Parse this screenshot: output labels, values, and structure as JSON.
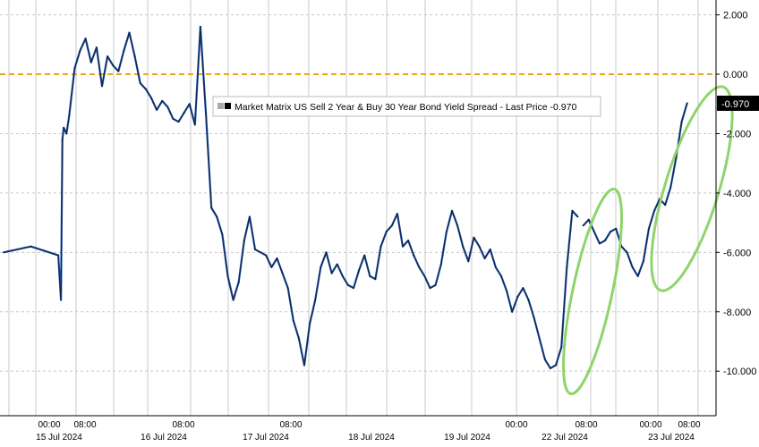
{
  "chart_data": {
    "type": "line",
    "title": "",
    "xlabel": "",
    "ylabel": "",
    "ylim": [
      -11.5,
      2.5
    ],
    "y_ticks": [
      "2.000",
      "0.000",
      "-2.000",
      "-4.000",
      "-6.000",
      "-8.000",
      "-10.000"
    ],
    "y_tick_values": [
      2,
      0,
      -2,
      -4,
      -6,
      -8,
      -10
    ],
    "y_axis_side": "right",
    "grid": true,
    "reference_line": {
      "value": 0,
      "color": "#e6a817",
      "style": "dashed"
    },
    "legend": {
      "text": "Market Matrix US Sell 2 Year & Buy 30 Year Bond Yield Spread - Last Price -0.970",
      "placement": "top-center"
    },
    "last_price_label": "-0.970",
    "last_price_value": -0.97,
    "x_time_ticks": [
      "00:00",
      "08:00",
      "08:00",
      "08:00",
      "00:00",
      "08:00",
      "00:00",
      "08:00"
    ],
    "x_date_labels": [
      "15 Jul 2024",
      "16 Jul 2024",
      "17 Jul 2024",
      "18 Jul 2024",
      "19 Jul 2024",
      "22 Jul 2024",
      "23 Jul 2024"
    ],
    "series": [
      {
        "color": "#1f4e9c",
        "x": [
          0,
          1,
          2,
          2.1,
          2.15,
          2.2,
          2.3,
          2.4,
          2.6,
          2.8,
          3.0,
          3.2,
          3.4,
          3.6,
          3.8,
          4.0,
          4.2,
          4.4,
          4.6,
          4.8,
          5.0,
          5.2,
          5.4,
          5.6,
          5.8,
          6.0,
          6.2,
          6.4,
          6.6,
          6.8,
          7.0,
          7.2,
          7.4,
          7.6,
          7.8,
          8.0,
          8.2,
          8.4,
          8.6,
          8.8,
          9.0,
          9.2,
          9.4,
          9.6,
          9.8,
          10.0,
          10.2,
          10.4,
          10.6,
          10.8,
          11.0,
          11.2,
          11.4,
          11.6,
          11.8,
          12.0,
          12.2,
          12.4,
          12.6,
          12.8,
          13.0,
          13.2,
          13.4,
          13.6,
          13.8,
          14.0,
          14.2,
          14.4,
          14.6,
          14.8,
          15.0,
          15.2,
          15.4,
          15.6,
          15.8,
          16.0,
          16.2,
          16.4,
          16.6,
          16.8,
          17.0,
          17.2,
          17.4,
          17.6,
          17.8,
          18.0,
          18.2,
          18.4,
          18.6,
          18.8,
          19.0,
          19.2,
          19.4,
          19.6,
          19.8,
          20.0,
          20.2,
          20.4,
          20.6,
          20.8,
          21.0
        ],
        "values": [
          -6.0,
          -5.8,
          -6.1,
          -7.6,
          -2.2,
          -1.8,
          -2.0,
          -1.4,
          0.2,
          0.8,
          1.2,
          0.4,
          0.9,
          -0.4,
          0.6,
          0.3,
          0.1,
          0.8,
          1.4,
          0.6,
          -0.3,
          -0.5,
          -0.8,
          -1.2,
          -0.9,
          -1.1,
          -1.5,
          -1.6,
          -1.3,
          -1.0,
          -1.7,
          1.6,
          -1.3,
          -4.5,
          -4.8,
          -5.4,
          -6.8,
          -7.6,
          -7.0,
          -5.6,
          -4.8,
          -5.9,
          -6.0,
          -6.1,
          -6.5,
          -6.2,
          -6.7,
          -7.2,
          -8.3,
          -8.9,
          -9.8,
          -8.4,
          -7.6,
          -6.5,
          -6.0,
          -6.7,
          -6.4,
          -6.8,
          -7.1,
          -7.2,
          -6.6,
          -6.1,
          -6.8,
          -6.9,
          -5.8,
          -5.3,
          -5.1,
          -4.7,
          -5.8,
          -5.6,
          -6.1,
          -6.5,
          -6.8,
          -7.2,
          -7.1,
          -6.4,
          -5.3,
          -4.6,
          -5.1,
          -5.8,
          -6.3,
          -5.5,
          -5.8,
          -6.2,
          -5.9,
          -6.5,
          -6.8,
          -7.3,
          -8.0,
          -7.5,
          -7.2,
          -7.6,
          -8.2,
          -8.9,
          -9.6,
          -9.9,
          -9.8,
          -9.2,
          -6.5,
          -4.6,
          -4.8
        ]
      },
      {
        "color": "#1f4e9c",
        "x": [
          21.2,
          21.4,
          21.6,
          21.8,
          22.0,
          22.2,
          22.4,
          22.6,
          22.8,
          23.0,
          23.2,
          23.4,
          23.6,
          23.8,
          24.0,
          24.2,
          24.4,
          24.6,
          24.8,
          25.0
        ],
        "values": [
          -5.1,
          -4.9,
          -5.3,
          -5.7,
          -5.6,
          -5.3,
          -5.2,
          -5.8,
          -6.0,
          -6.5,
          -6.8,
          -6.3,
          -5.2,
          -4.6,
          -4.2,
          -4.4,
          -3.8,
          -2.8,
          -1.6,
          -0.97
        ]
      }
    ],
    "annotations": [
      {
        "type": "ellipse",
        "color": "#8fd46b",
        "around": "22 Jul 2024 08:00 rally"
      },
      {
        "type": "ellipse",
        "color": "#8fd46b",
        "around": "23 Jul 2024 rally"
      }
    ]
  }
}
